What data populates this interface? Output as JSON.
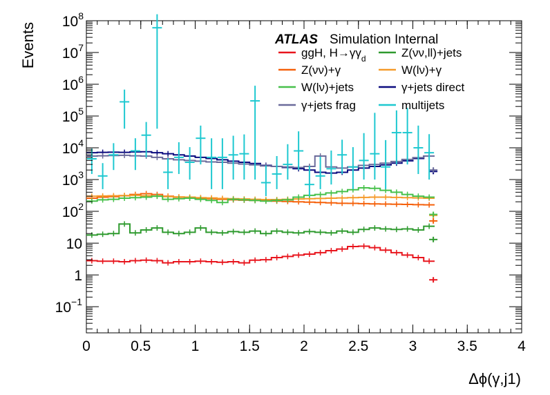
{
  "chart_data": {
    "type": "line",
    "title": "",
    "annotation": {
      "experiment": "ATLAS",
      "label": "Simulation Internal"
    },
    "xlabel": "Δϕ(γ,j1)",
    "ylabel": "Events",
    "xlim": [
      0,
      4
    ],
    "ylim": [
      0.015,
      100000000
    ],
    "y_scale": "log",
    "bin_width": 0.1,
    "legend_position": "top-right",
    "grid": false,
    "x_ticks": [
      {
        "value": 0,
        "label": "0"
      },
      {
        "value": 0.5,
        "label": "0.5"
      },
      {
        "value": 1,
        "label": "1"
      },
      {
        "value": 1.5,
        "label": "1.5"
      },
      {
        "value": 2,
        "label": "2"
      },
      {
        "value": 2.5,
        "label": "2.5"
      },
      {
        "value": 3,
        "label": "3"
      },
      {
        "value": 3.5,
        "label": "3.5"
      },
      {
        "value": 4,
        "label": "4"
      }
    ],
    "y_ticks": [
      {
        "value": 0.1,
        "base": "10",
        "exp": "−1"
      },
      {
        "value": 1,
        "base": "1",
        "exp": ""
      },
      {
        "value": 10,
        "base": "10",
        "exp": ""
      },
      {
        "value": 100,
        "base": "10",
        "exp": "2"
      },
      {
        "value": 1000,
        "base": "10",
        "exp": "3"
      },
      {
        "value": 10000,
        "base": "10",
        "exp": "4"
      },
      {
        "value": 100000,
        "base": "10",
        "exp": "5"
      },
      {
        "value": 1000000,
        "base": "10",
        "exp": "6"
      },
      {
        "value": 10000000,
        "base": "10",
        "exp": "7"
      },
      {
        "value": 100000000,
        "base": "10",
        "exp": "8"
      }
    ],
    "series": [
      {
        "name": "ggH, H→γγ",
        "name_sub": "d",
        "color": "#e8141c",
        "x": [
          0.0,
          0.1,
          0.2,
          0.3,
          0.4,
          0.5,
          0.6,
          0.7,
          0.8,
          0.9,
          1.0,
          1.1,
          1.2,
          1.3,
          1.4,
          1.5,
          1.6,
          1.7,
          1.8,
          1.9,
          2.0,
          2.1,
          2.2,
          2.3,
          2.4,
          2.5,
          2.6,
          2.7,
          2.8,
          2.9,
          3.0,
          3.1,
          3.15
        ],
        "y": [
          2.8,
          2.7,
          2.7,
          2.6,
          2.8,
          2.9,
          2.8,
          2.4,
          2.6,
          2.6,
          2.7,
          2.6,
          2.5,
          2.6,
          2.4,
          2.9,
          3.0,
          3.5,
          3.8,
          4.2,
          4.5,
          5.0,
          5.8,
          6.5,
          7.8,
          8.0,
          7.2,
          6.0,
          5.0,
          4.2,
          3.5,
          2.7,
          0.7
        ]
      },
      {
        "name": "Z(νν,ll)+jets",
        "color": "#2e9a2e",
        "x": [
          0.0,
          0.1,
          0.2,
          0.3,
          0.4,
          0.5,
          0.6,
          0.7,
          0.8,
          0.9,
          1.0,
          1.1,
          1.2,
          1.3,
          1.4,
          1.5,
          1.6,
          1.7,
          1.8,
          1.9,
          2.0,
          2.1,
          2.2,
          2.3,
          2.4,
          2.5,
          2.6,
          2.7,
          2.8,
          2.9,
          3.0,
          3.1,
          3.15
        ],
        "y": [
          18,
          19,
          20,
          40,
          21,
          26,
          30,
          22,
          20,
          22,
          30,
          22,
          21,
          23,
          22,
          24,
          20,
          24,
          22,
          21,
          23,
          22,
          21,
          24,
          22,
          27,
          30,
          28,
          27,
          28,
          26,
          34,
          13
        ]
      },
      {
        "name": "Z(νν)+γ",
        "color": "#f5600a",
        "x": [
          0.0,
          0.1,
          0.2,
          0.3,
          0.4,
          0.5,
          0.6,
          0.7,
          0.8,
          0.9,
          1.0,
          1.1,
          1.2,
          1.3,
          1.4,
          1.5,
          1.6,
          1.7,
          1.8,
          1.9,
          2.0,
          2.1,
          2.2,
          2.3,
          2.4,
          2.5,
          2.6,
          2.7,
          2.8,
          2.9,
          3.0,
          3.1,
          3.15
        ],
        "y": [
          260,
          280,
          290,
          310,
          340,
          360,
          340,
          300,
          280,
          270,
          260,
          250,
          240,
          230,
          225,
          220,
          215,
          210,
          205,
          200,
          195,
          190,
          185,
          180,
          178,
          175,
          172,
          170,
          168,
          165,
          162,
          160,
          50
        ]
      },
      {
        "name": "W(lν)+γ",
        "color": "#f59a2a",
        "x": [
          0.0,
          0.1,
          0.2,
          0.3,
          0.4,
          0.5,
          0.6,
          0.7,
          0.8,
          0.9,
          1.0,
          1.1,
          1.2,
          1.3,
          1.4,
          1.5,
          1.6,
          1.7,
          1.8,
          1.9,
          2.0,
          2.1,
          2.2,
          2.3,
          2.4,
          2.5,
          2.6,
          2.7,
          2.8,
          2.9,
          3.0,
          3.1,
          3.15
        ],
        "y": [
          300,
          305,
          310,
          315,
          320,
          310,
          300,
          290,
          285,
          280,
          270,
          265,
          255,
          250,
          245,
          240,
          235,
          235,
          240,
          245,
          250,
          255,
          260,
          265,
          270,
          275,
          280,
          280,
          275,
          270,
          265,
          260,
          75
        ]
      },
      {
        "name": "W(lν)+jets",
        "color": "#46c04a",
        "x": [
          0.0,
          0.1,
          0.2,
          0.3,
          0.4,
          0.5,
          0.6,
          0.7,
          0.8,
          0.9,
          1.0,
          1.1,
          1.2,
          1.3,
          1.4,
          1.5,
          1.6,
          1.7,
          1.8,
          1.9,
          2.0,
          2.1,
          2.2,
          2.3,
          2.4,
          2.5,
          2.6,
          2.7,
          2.8,
          2.9,
          3.0,
          3.1,
          3.15
        ],
        "y": [
          210,
          230,
          240,
          260,
          270,
          280,
          300,
          240,
          250,
          260,
          240,
          220,
          190,
          240,
          230,
          220,
          210,
          220,
          230,
          280,
          320,
          340,
          380,
          420,
          480,
          550,
          530,
          460,
          400,
          340,
          300,
          280,
          80
        ]
      },
      {
        "name": "γ+jets direct",
        "color": "#0a0a7e",
        "x": [
          0.0,
          0.1,
          0.2,
          0.3,
          0.4,
          0.5,
          0.6,
          0.7,
          0.8,
          0.9,
          1.0,
          1.1,
          1.2,
          1.3,
          1.4,
          1.5,
          1.6,
          1.7,
          1.8,
          1.9,
          2.0,
          2.1,
          2.2,
          2.3,
          2.4,
          2.5,
          2.6,
          2.7,
          2.8,
          2.9,
          3.0,
          3.1,
          3.15
        ],
        "y": [
          7000,
          7200,
          7300,
          7200,
          7400,
          7500,
          7000,
          6500,
          6000,
          5500,
          5000,
          4600,
          4200,
          3800,
          3500,
          3200,
          2800,
          2600,
          2400,
          2200,
          2000,
          1700,
          1600,
          1700,
          2000,
          2300,
          2600,
          2900,
          3300,
          3900,
          4600,
          5500,
          1800
        ]
      },
      {
        "name": "γ+jets frag",
        "color": "#6a6a9a",
        "x": [
          0.0,
          0.1,
          0.2,
          0.3,
          0.4,
          0.5,
          0.6,
          0.7,
          0.8,
          0.9,
          1.0,
          1.1,
          1.2,
          1.3,
          1.4,
          1.5,
          1.6,
          1.7,
          1.8,
          1.9,
          2.0,
          2.1,
          2.2,
          2.3,
          2.4,
          2.5,
          2.6,
          2.7,
          2.8,
          2.9,
          3.0,
          3.1,
          3.15
        ],
        "y": [
          5500,
          5600,
          5700,
          5800,
          5600,
          5500,
          5000,
          4500,
          4200,
          4000,
          3800,
          3600,
          3500,
          3300,
          3100,
          2900,
          2700,
          2600,
          2500,
          2400,
          2600,
          5500,
          2500,
          2300,
          2500,
          2800,
          3000,
          3300,
          3700,
          4300,
          4900,
          5500,
          2000
        ]
      },
      {
        "name": "multijets",
        "color": "#1ec8d0",
        "markers": "error-bar",
        "x": [
          0.05,
          0.15,
          0.25,
          0.35,
          0.45,
          0.55,
          0.65,
          0.75,
          0.85,
          0.95,
          1.05,
          1.15,
          1.25,
          1.35,
          1.45,
          1.55,
          1.65,
          1.75,
          1.85,
          1.95,
          2.05,
          2.15,
          2.25,
          2.35,
          2.45,
          2.55,
          2.65,
          2.75,
          2.85,
          2.95,
          3.05,
          3.15
        ],
        "y": [
          4500,
          1300,
          6000,
          280000,
          8000,
          25000,
          60000000,
          1700,
          5000,
          3500,
          20000,
          5000,
          5000,
          6000,
          6500,
          300000,
          800,
          1500,
          3000,
          8000,
          700,
          1300,
          2200,
          6000,
          2500,
          4000,
          6500,
          2500,
          30000,
          30000,
          10000,
          7000
        ],
        "yerr_low": [
          3000,
          800,
          4000,
          240000,
          6000,
          20000,
          59960000,
          1200,
          3500,
          2500,
          17000,
          4500,
          4500,
          5000,
          5500,
          299000,
          500,
          1000,
          2000,
          6000,
          400,
          800,
          1500,
          4500,
          2000,
          3000,
          5500,
          2000,
          27000,
          27000,
          8500,
          6000
        ],
        "yerr_high": [
          5000,
          2000,
          8000,
          400000,
          12000,
          40000,
          100000000,
          3000,
          10000,
          7000,
          30000,
          15000,
          15000,
          18000,
          20000,
          600000,
          2000,
          4000,
          10000,
          25000,
          2000,
          4000,
          6000,
          12000,
          8000,
          25000,
          120000,
          15000,
          120000,
          150000,
          40000,
          20000
        ]
      }
    ]
  }
}
